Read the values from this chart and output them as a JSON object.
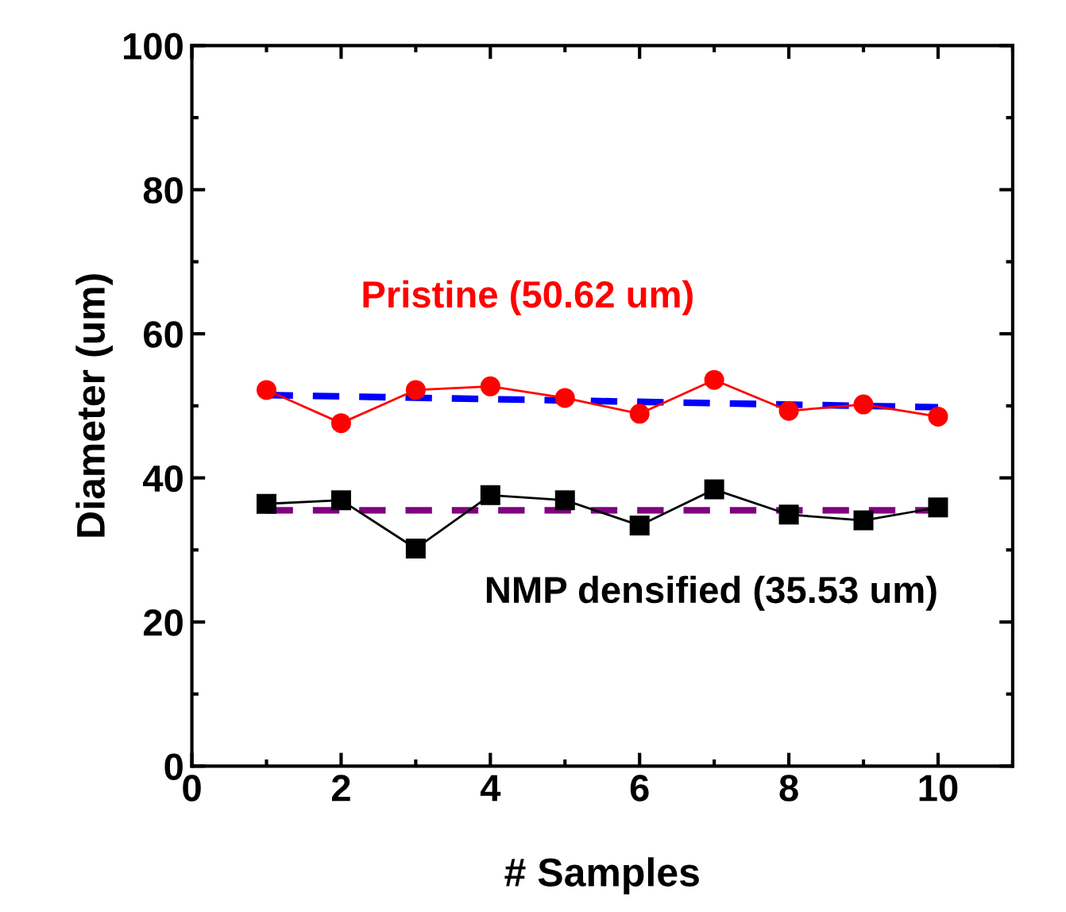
{
  "chart_data": {
    "type": "line",
    "xlabel": "# Samples",
    "ylabel": "Diameter (um)",
    "xlim": [
      0,
      11
    ],
    "xticks": [
      0,
      2,
      4,
      6,
      8,
      10
    ],
    "ylim": [
      0,
      100
    ],
    "yticks": [
      0,
      20,
      40,
      60,
      80,
      100
    ],
    "grid": false,
    "legend": false,
    "series": [
      {
        "name": "Pristine (50.62 um)",
        "color": "#ff0000",
        "marker": "circle",
        "line_style": "solid",
        "x": [
          1,
          2,
          3,
          4,
          5,
          6,
          7,
          8,
          9,
          10
        ],
        "values": [
          52.2,
          47.6,
          52.2,
          52.7,
          51.1,
          48.9,
          53.6,
          49.3,
          50.2,
          48.5
        ]
      },
      {
        "name": "NMP densified (35.53 um)",
        "color": "#000000",
        "marker": "square",
        "line_style": "solid",
        "x": [
          1,
          2,
          3,
          4,
          5,
          6,
          7,
          8,
          9,
          10
        ],
        "values": [
          36.4,
          36.9,
          30.2,
          37.6,
          36.9,
          33.4,
          38.4,
          34.9,
          34.1,
          35.9
        ]
      },
      {
        "color": "#0000ff",
        "marker": "none",
        "line_style": "dashed",
        "x": [
          1,
          10
        ],
        "values": [
          51.5,
          49.8
        ]
      },
      {
        "color": "#800080",
        "marker": "none",
        "line_style": "dashed",
        "x": [
          1,
          10
        ],
        "values": [
          35.5,
          35.5
        ]
      }
    ]
  }
}
